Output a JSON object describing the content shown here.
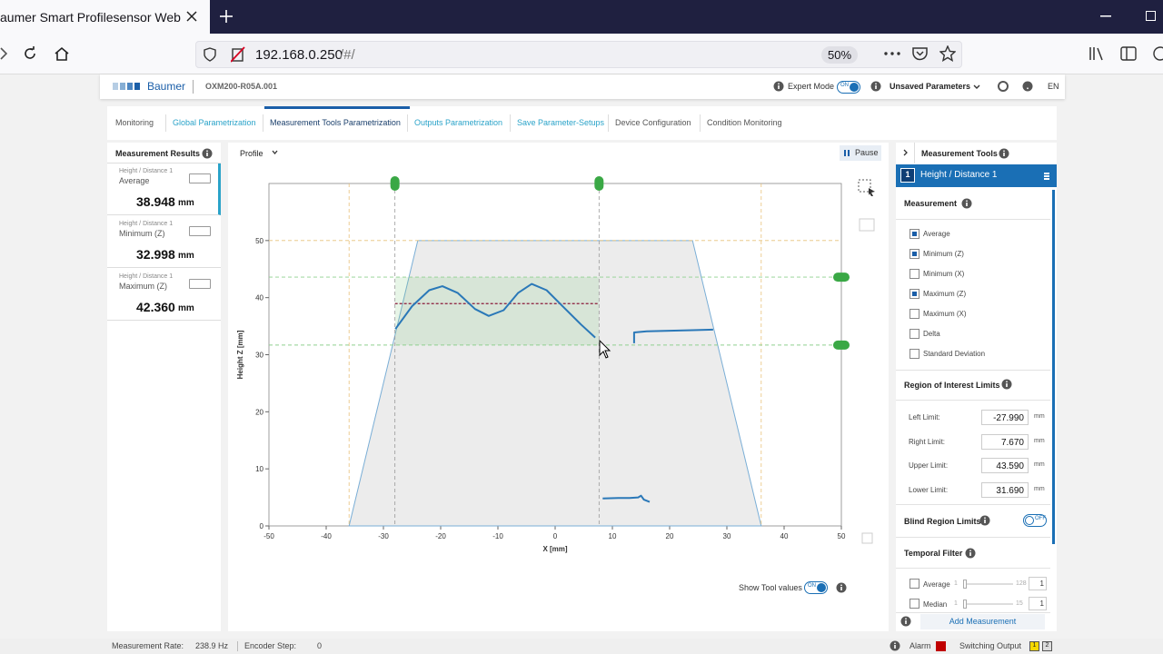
{
  "browser": {
    "tab_title": "aumer Smart Profilesensor Web G",
    "url_host": "192.168.0.250",
    "url_path": "/#/",
    "zoom": "50%"
  },
  "header": {
    "brand": "Baumer",
    "device": "OXM200-R05A.001",
    "expert_mode": "Expert Mode",
    "expert_toggle": "ON",
    "unsaved": "Unsaved Parameters",
    "language": "EN"
  },
  "tabs": {
    "items": [
      "Monitoring",
      "Global Parametrization",
      "Measurement Tools Parametrization",
      "Outputs Parametrization",
      "Save Parameter-Setups",
      "Device Configuration",
      "Condition Monitoring"
    ],
    "active": 2,
    "highlighted": [
      1,
      3,
      4
    ]
  },
  "results": {
    "title": "Measurement Results",
    "items": [
      {
        "tool": "Height / Distance 1",
        "label": "Average",
        "value": "38.948",
        "unit": "mm"
      },
      {
        "tool": "Height / Distance 1",
        "label": "Minimum (Z)",
        "value": "32.998",
        "unit": "mm"
      },
      {
        "tool": "Height / Distance 1",
        "label": "Maximum (Z)",
        "value": "42.360",
        "unit": "mm"
      }
    ]
  },
  "chart_panel": {
    "view": "Profile",
    "pause": "Pause",
    "show_tool_values": "Show Tool values",
    "show_toggle": "ON"
  },
  "chart_data": {
    "type": "line",
    "xlabel": "X [mm]",
    "ylabel": "Height Z [mm]",
    "xlim": [
      -50,
      50
    ],
    "ylim": [
      0,
      60
    ],
    "xticks": [
      -50,
      -40,
      -30,
      -20,
      -10,
      0,
      10,
      20,
      30,
      40,
      50
    ],
    "yticks": [
      0,
      10,
      20,
      30,
      40,
      50
    ],
    "color": "#2a78b8",
    "x": [
      -27.9,
      -25,
      -22,
      -19.7,
      -17,
      -14,
      -11.6,
      -9,
      -6.5,
      -4.1,
      -1.5,
      1.5,
      4.5,
      7.0,
      null,
      13.8,
      13.8,
      16,
      20,
      24,
      27.6,
      null,
      8.3,
      11,
      13,
      14.5,
      15,
      15.5,
      16.5
    ],
    "values": [
      34.5,
      38.5,
      41.3,
      42.0,
      40.8,
      38.0,
      36.8,
      37.8,
      40.8,
      42.4,
      41.3,
      38.3,
      35.3,
      33.0,
      null,
      32.0,
      33.9,
      34.1,
      34.2,
      34.3,
      34.4,
      null,
      4.8,
      4.9,
      4.9,
      5.0,
      5.3,
      4.6,
      4.2
    ],
    "measuring_range": {
      "x": [
        -36,
        -24,
        24,
        36
      ],
      "values": [
        0,
        50,
        50,
        0
      ],
      "color": "#7aaed6"
    }
  },
  "tools": {
    "title": "Measurement Tools",
    "tool_number": "1",
    "tool_name": "Height / Distance 1",
    "measurement": {
      "title": "Measurement",
      "options": [
        {
          "label": "Average",
          "checked": true
        },
        {
          "label": "Minimum (Z)",
          "checked": true
        },
        {
          "label": "Minimum (X)",
          "checked": false
        },
        {
          "label": "Maximum (Z)",
          "checked": true
        },
        {
          "label": "Maximum (X)",
          "checked": false
        },
        {
          "label": "Delta",
          "checked": false
        },
        {
          "label": "Standard Deviation",
          "checked": false
        }
      ]
    },
    "roi": {
      "title": "Region of Interest Limits",
      "limits": [
        {
          "label": "Left Limit:",
          "value": "-27.990",
          "unit": "mm"
        },
        {
          "label": "Right Limit:",
          "value": "7.670",
          "unit": "mm"
        },
        {
          "label": "Upper Limit:",
          "value": "43.590",
          "unit": "mm"
        },
        {
          "label": "Lower Limit:",
          "value": "31.690",
          "unit": "mm"
        }
      ]
    },
    "blind": {
      "title": "Blind Region Limits",
      "toggle": "OFF"
    },
    "temporal": {
      "title": "Temporal Filter",
      "filters": [
        {
          "label": "Average",
          "min": "1",
          "max": "128",
          "value": "1"
        },
        {
          "label": "Median",
          "min": "1",
          "max": "15",
          "value": "1"
        }
      ]
    },
    "add": "Add Measurement"
  },
  "status": {
    "rate_label": "Measurement Rate:",
    "rate": "238.9 Hz",
    "encoder_label": "Encoder Step:",
    "encoder": "0",
    "alarm": "Alarm",
    "switching": "Switching Output",
    "outputs": [
      "1",
      "2"
    ]
  }
}
